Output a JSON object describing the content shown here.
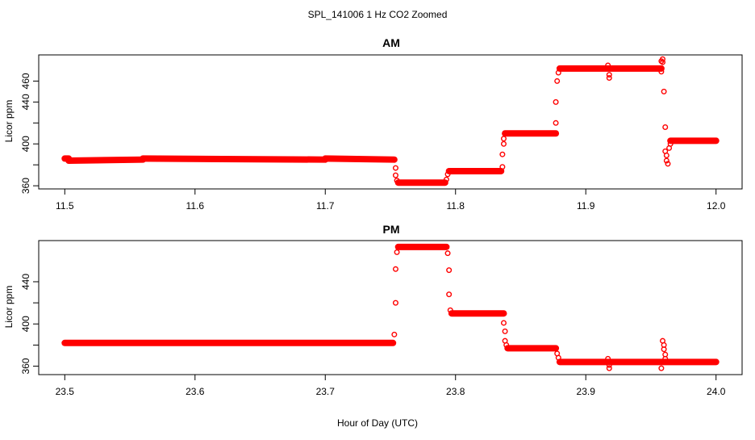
{
  "figure": {
    "title": "SPL_141006  1 Hz CO2 Zoomed",
    "xlabel": "Hour of Day (UTC)"
  },
  "chart_data": [
    {
      "type": "scatter",
      "title": "AM",
      "ylabel": "Licor ppm",
      "xlim": [
        11.48,
        12.02
      ],
      "ylim": [
        357,
        485
      ],
      "xticks": [
        11.5,
        11.6,
        11.7,
        11.8,
        11.9,
        12.0
      ],
      "xtick_labels": [
        "11.5",
        "11.6",
        "11.7",
        "11.8",
        "11.9",
        "12.0"
      ],
      "yticks": [
        360,
        380,
        400,
        420,
        440,
        460
      ],
      "ytick_labels": [
        "360",
        "",
        "400",
        "",
        "440",
        "460"
      ],
      "grid": false,
      "marker_color": "#ff0000",
      "segments": [
        {
          "x": [
            11.5,
            11.503
          ],
          "y": [
            386,
            386
          ]
        },
        {
          "x": [
            11.503,
            11.56
          ],
          "y": [
            384,
            385
          ]
        },
        {
          "x": [
            11.56,
            11.7
          ],
          "y": [
            386,
            385
          ]
        },
        {
          "x": [
            11.7,
            11.753
          ],
          "y": [
            386,
            385
          ]
        },
        {
          "x": [
            11.756,
            11.792
          ],
          "y": [
            363,
            363
          ]
        },
        {
          "x": [
            11.795,
            11.835
          ],
          "y": [
            374,
            374
          ]
        },
        {
          "x": [
            11.838,
            11.877
          ],
          "y": [
            410,
            410
          ]
        },
        {
          "x": [
            11.88,
            11.958
          ],
          "y": [
            472,
            472
          ]
        },
        {
          "x": [
            11.965,
            12.0
          ],
          "y": [
            403,
            403
          ]
        }
      ],
      "points": [
        {
          "x": 11.754,
          "y": 377
        },
        {
          "x": 11.754,
          "y": 370
        },
        {
          "x": 11.755,
          "y": 365
        },
        {
          "x": 11.793,
          "y": 366
        },
        {
          "x": 11.794,
          "y": 371
        },
        {
          "x": 11.836,
          "y": 378
        },
        {
          "x": 11.836,
          "y": 390
        },
        {
          "x": 11.837,
          "y": 400
        },
        {
          "x": 11.837,
          "y": 405
        },
        {
          "x": 11.877,
          "y": 420
        },
        {
          "x": 11.877,
          "y": 440
        },
        {
          "x": 11.878,
          "y": 460
        },
        {
          "x": 11.879,
          "y": 468
        },
        {
          "x": 11.917,
          "y": 475
        },
        {
          "x": 11.918,
          "y": 466
        },
        {
          "x": 11.918,
          "y": 463
        },
        {
          "x": 11.958,
          "y": 479
        },
        {
          "x": 11.959,
          "y": 481
        },
        {
          "x": 11.959,
          "y": 478
        },
        {
          "x": 11.958,
          "y": 469
        },
        {
          "x": 11.96,
          "y": 450
        },
        {
          "x": 11.961,
          "y": 416
        },
        {
          "x": 11.961,
          "y": 393
        },
        {
          "x": 11.962,
          "y": 389
        },
        {
          "x": 11.962,
          "y": 384
        },
        {
          "x": 11.963,
          "y": 381
        },
        {
          "x": 11.964,
          "y": 396
        },
        {
          "x": 11.965,
          "y": 400
        }
      ]
    },
    {
      "type": "scatter",
      "title": "PM",
      "ylabel": "Licor ppm",
      "xlim": [
        23.48,
        24.02
      ],
      "ylim": [
        352,
        479
      ],
      "xticks": [
        23.5,
        23.6,
        23.7,
        23.8,
        23.9,
        24.0
      ],
      "xtick_labels": [
        "23.5",
        "23.6",
        "23.7",
        "23.8",
        "23.9",
        "24.0"
      ],
      "yticks": [
        360,
        380,
        400,
        420,
        440
      ],
      "ytick_labels": [
        "360",
        "",
        "400",
        "",
        "440"
      ],
      "grid": false,
      "marker_color": "#ff0000",
      "segments": [
        {
          "x": [
            23.5,
            23.752
          ],
          "y": [
            382,
            382
          ]
        },
        {
          "x": [
            23.756,
            23.793
          ],
          "y": [
            473,
            473
          ]
        },
        {
          "x": [
            23.797,
            23.837
          ],
          "y": [
            410,
            410
          ]
        },
        {
          "x": [
            23.84,
            23.877
          ],
          "y": [
            377,
            377
          ]
        },
        {
          "x": [
            23.88,
            24.0
          ],
          "y": [
            364,
            364
          ]
        }
      ],
      "points": [
        {
          "x": 23.753,
          "y": 390
        },
        {
          "x": 23.754,
          "y": 420
        },
        {
          "x": 23.754,
          "y": 452
        },
        {
          "x": 23.755,
          "y": 468
        },
        {
          "x": 23.794,
          "y": 467
        },
        {
          "x": 23.795,
          "y": 451
        },
        {
          "x": 23.795,
          "y": 428
        },
        {
          "x": 23.796,
          "y": 413
        },
        {
          "x": 23.837,
          "y": 401
        },
        {
          "x": 23.838,
          "y": 393
        },
        {
          "x": 23.838,
          "y": 384
        },
        {
          "x": 23.839,
          "y": 380
        },
        {
          "x": 23.878,
          "y": 372
        },
        {
          "x": 23.879,
          "y": 368
        },
        {
          "x": 23.917,
          "y": 367
        },
        {
          "x": 23.918,
          "y": 361
        },
        {
          "x": 23.918,
          "y": 358
        },
        {
          "x": 23.958,
          "y": 358
        },
        {
          "x": 23.959,
          "y": 384
        },
        {
          "x": 23.96,
          "y": 380
        },
        {
          "x": 23.96,
          "y": 376
        },
        {
          "x": 23.961,
          "y": 371
        },
        {
          "x": 23.961,
          "y": 367
        }
      ]
    }
  ]
}
